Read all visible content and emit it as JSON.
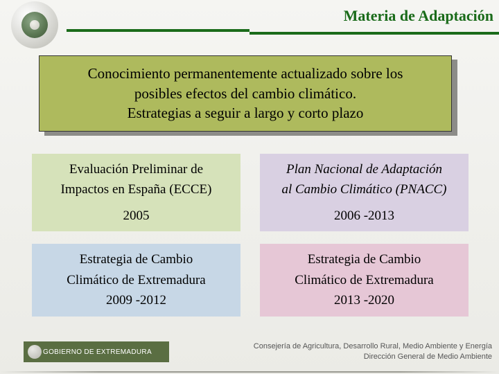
{
  "header": {
    "title": "Materia de Adaptación",
    "title_color": "#1a6b1a",
    "rule_color": "#1a6b1a"
  },
  "intro": {
    "line1": "Conocimiento permanentemente actualizado sobre los",
    "line2": "posibles efectos del cambio climático.",
    "line3": "Estrategias a seguir a largo y corto plazo",
    "bg_color": "#aeba5d",
    "shadow_color": "#8c8c88"
  },
  "cells": {
    "topLeft": {
      "l1": "Evaluación Preliminar de",
      "l2": "Impactos en España (ECCE)",
      "year": "2005",
      "bg": "#d6e2ba"
    },
    "topRight": {
      "l1": "Plan Nacional de Adaptación",
      "l2": "al Cambio Climático (PNACC)",
      "year": "2006 -2013",
      "bg": "#d9d0e2"
    },
    "bottomLeft": {
      "l1": "Estrategia de Cambio",
      "l2": "Climático de Extremadura",
      "year": "2009 -2012",
      "bg": "#c7d7e6"
    },
    "bottomRight": {
      "l1": "Estrategia de Cambio",
      "l2": "Climático de Extremadura",
      "year": "2013 -2020",
      "bg": "#e6c7d6"
    }
  },
  "footer": {
    "left_label": "GOBIERNO DE EXTREMADURA",
    "left_bg": "#5a6e42",
    "right_line1": "Consejería de Agricultura, Desarrollo Rural, Medio Ambiente y Energía",
    "right_line2": "Dirección General de Medio Ambiente"
  }
}
